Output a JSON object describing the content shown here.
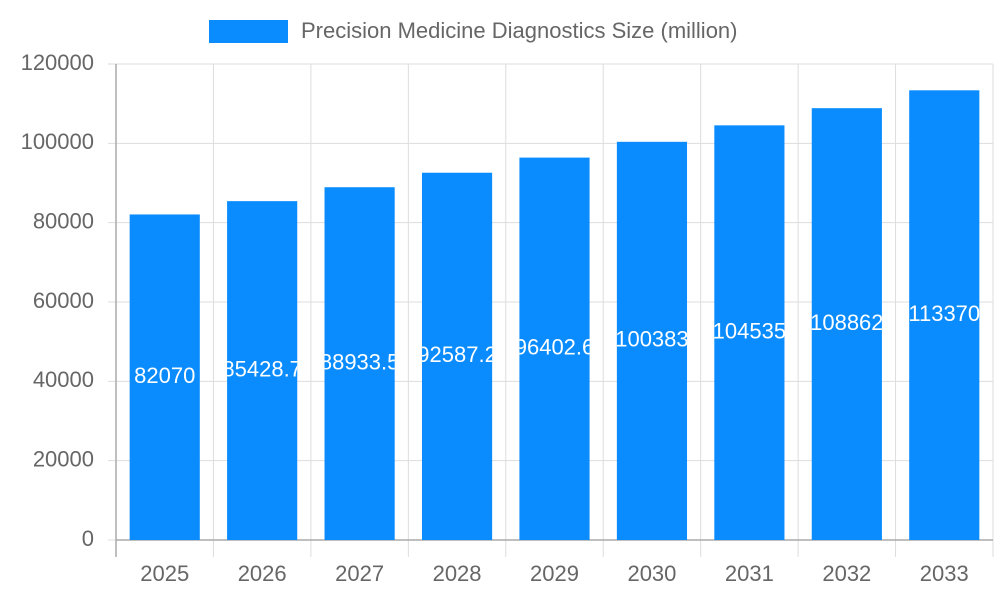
{
  "chart_data": {
    "type": "bar",
    "categories": [
      "2025",
      "2026",
      "2027",
      "2028",
      "2029",
      "2030",
      "2031",
      "2032",
      "2033"
    ],
    "series": [
      {
        "name": "Precision Medicine Diagnostics Size (million)",
        "color": "#0a8cff",
        "values": [
          82070,
          85428.7,
          88933.5,
          92587.2,
          96402.6,
          100383,
          104535,
          108862,
          113370
        ]
      }
    ],
    "ylim": [
      0,
      120000
    ],
    "yticks": [
      0,
      20000,
      40000,
      60000,
      80000,
      100000,
      120000
    ],
    "grid": true,
    "legend": "top"
  }
}
